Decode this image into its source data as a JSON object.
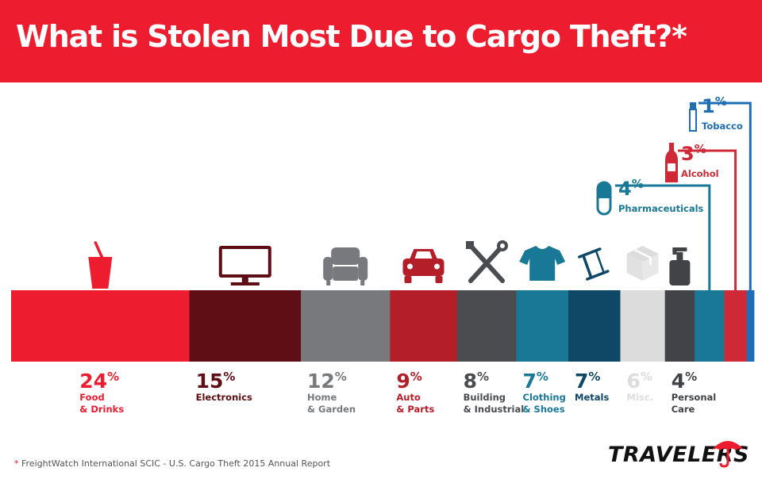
{
  "header": {
    "title": "What is Stolen Most Due to Cargo Theft?*",
    "background_color": "#ed1c2e"
  },
  "chart_data": {
    "type": "bar",
    "layout": "stacked-100",
    "title": "What is Stolen Most Due to Cargo Theft?*",
    "unit": "%",
    "xlabel": "",
    "ylabel": "",
    "grid": false,
    "legend": "none",
    "categories": [
      {
        "name": "Food & Drinks",
        "label_lines": [
          "Food",
          "& Drinks"
        ],
        "value": 24,
        "color": "#ed1c2e",
        "icon": "drink-cup-icon"
      },
      {
        "name": "Electronics",
        "label_lines": [
          "Electronics"
        ],
        "value": 15,
        "color": "#5e0e14",
        "icon": "monitor-icon"
      },
      {
        "name": "Home & Garden",
        "label_lines": [
          "Home",
          "& Garden"
        ],
        "value": 12,
        "color": "#77797c",
        "icon": "armchair-icon"
      },
      {
        "name": "Auto & Parts",
        "label_lines": [
          "Auto",
          "& Parts"
        ],
        "value": 9,
        "color": "#b41e29",
        "icon": "car-icon"
      },
      {
        "name": "Building & Industrial",
        "label_lines": [
          "Building",
          "& Industrial"
        ],
        "value": 8,
        "color": "#4a4c50",
        "icon": "tools-icon"
      },
      {
        "name": "Clothing & Shoes",
        "label_lines": [
          "Clothing",
          "& Shoes"
        ],
        "value": 7,
        "color": "#1a7897",
        "icon": "tshirt-icon"
      },
      {
        "name": "Metals",
        "label_lines": [
          "Metals"
        ],
        "value": 7,
        "color": "#0f4766",
        "icon": "steel-beam-icon"
      },
      {
        "name": "Misc.",
        "label_lines": [
          "Misc."
        ],
        "value": 6,
        "color": "#dcdcdd",
        "icon": "box-icon"
      },
      {
        "name": "Personal Care",
        "label_lines": [
          "Personal",
          "Care"
        ],
        "value": 4,
        "color": "#414347",
        "icon": "pump-bottle-icon"
      },
      {
        "name": "Pharmaceuticals",
        "label_lines": [
          "Pharmaceuticals"
        ],
        "value": 4,
        "color": "#1a7897",
        "icon": "pill-icon"
      },
      {
        "name": "Alcohol",
        "label_lines": [
          "Alcohol"
        ],
        "value": 3,
        "color": "#cf2836",
        "icon": "bottle-icon"
      },
      {
        "name": "Tobacco",
        "label_lines": [
          "Tobacco"
        ],
        "value": 1,
        "color": "#1e6db5",
        "icon": "cigarette-icon"
      }
    ]
  },
  "footer": {
    "footnote_mark": "*",
    "footnote": " FreightWatch International SCIC - U.S. Cargo Theft 2015 Annual Report",
    "logo_text": "TRAVELERS",
    "logo_icon": "umbrella-icon"
  }
}
